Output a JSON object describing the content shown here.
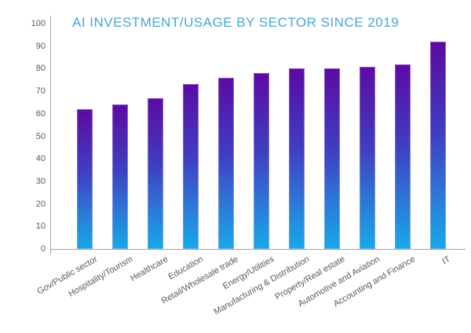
{
  "header": {
    "title": "AI INVESTMENT/USAGE BY SECTOR SINCE 2019",
    "title_color": "#45a5d9"
  },
  "chart_data": {
    "type": "bar",
    "title": "AI INVESTMENT/USAGE BY SECTOR SINCE 2019",
    "categories": [
      "Gov/Public sector",
      "Hospitality/Tourism",
      "Healthcare",
      "Education",
      "Retail/Wholesale trade",
      "Energy/Utilities",
      "Manufacturing & Distribution",
      "Property/Real estate",
      "Automotive and Aviation",
      "Accounting and Finance",
      "IT"
    ],
    "values": [
      62,
      64,
      67,
      73,
      76,
      78,
      80,
      80,
      81,
      82,
      92
    ],
    "xlabel": "",
    "ylabel": "",
    "ylim": [
      0,
      100
    ],
    "ytick_step": 10,
    "grid": false,
    "legend": "none",
    "bar_gradient": {
      "top": "#5c0aa2",
      "middle": "#3f3fc1",
      "lower": "#2b7ad8",
      "bottom": "#16a9e8"
    },
    "axis_color": "#a3a3a3",
    "tick_label_color": "#595959"
  }
}
